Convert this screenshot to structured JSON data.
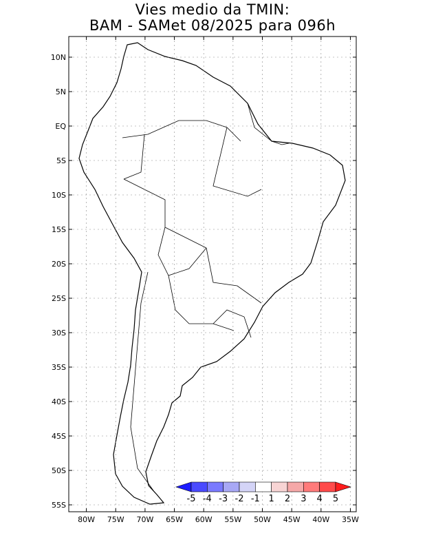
{
  "title": {
    "line1": "Vies medio da TMIN:",
    "line2": "BAM - SAMet 08/2025  para 096h"
  },
  "axes": {
    "lat_labels": [
      "10N",
      "5N",
      "EQ",
      "5S",
      "10S",
      "15S",
      "20S",
      "25S",
      "30S",
      "35S",
      "40S",
      "45S",
      "50S",
      "55S"
    ],
    "lat_values": [
      10,
      5,
      0,
      -5,
      -10,
      -15,
      -20,
      -25,
      -30,
      -35,
      -40,
      -45,
      -50,
      -55
    ],
    "lon_labels": [
      "80W",
      "75W",
      "70W",
      "65W",
      "60W",
      "55W",
      "50W",
      "45W",
      "40W",
      "35W"
    ],
    "lon_values": [
      -80,
      -75,
      -70,
      -65,
      -60,
      -55,
      -50,
      -45,
      -40,
      -35
    ],
    "lat_range": [
      -56,
      13
    ],
    "lon_range": [
      -83,
      -34
    ]
  },
  "colorbar": {
    "labels": [
      "-5",
      "-4",
      "-3",
      "-2",
      "-1",
      "1",
      "2",
      "3",
      "4",
      "5"
    ],
    "colors": [
      "#1c1cff",
      "#4a4aff",
      "#7a7aff",
      "#a8a8f5",
      "#d4d4f7",
      "#ffffff",
      "#f7d4d4",
      "#f5a8a8",
      "#ff7a7a",
      "#ff4a4a",
      "#ff1c1c"
    ]
  },
  "legend_colors": {
    "neutral": "#ffffff",
    "weak_pos": "#f7d4d4",
    "mod_pos": "#f5a8a8",
    "strong_pos": "#ff4a4a",
    "weak_neg": "#d4d4f7",
    "mod_neg": "#a8a8f5",
    "strong_neg": "#1c1cff"
  }
}
